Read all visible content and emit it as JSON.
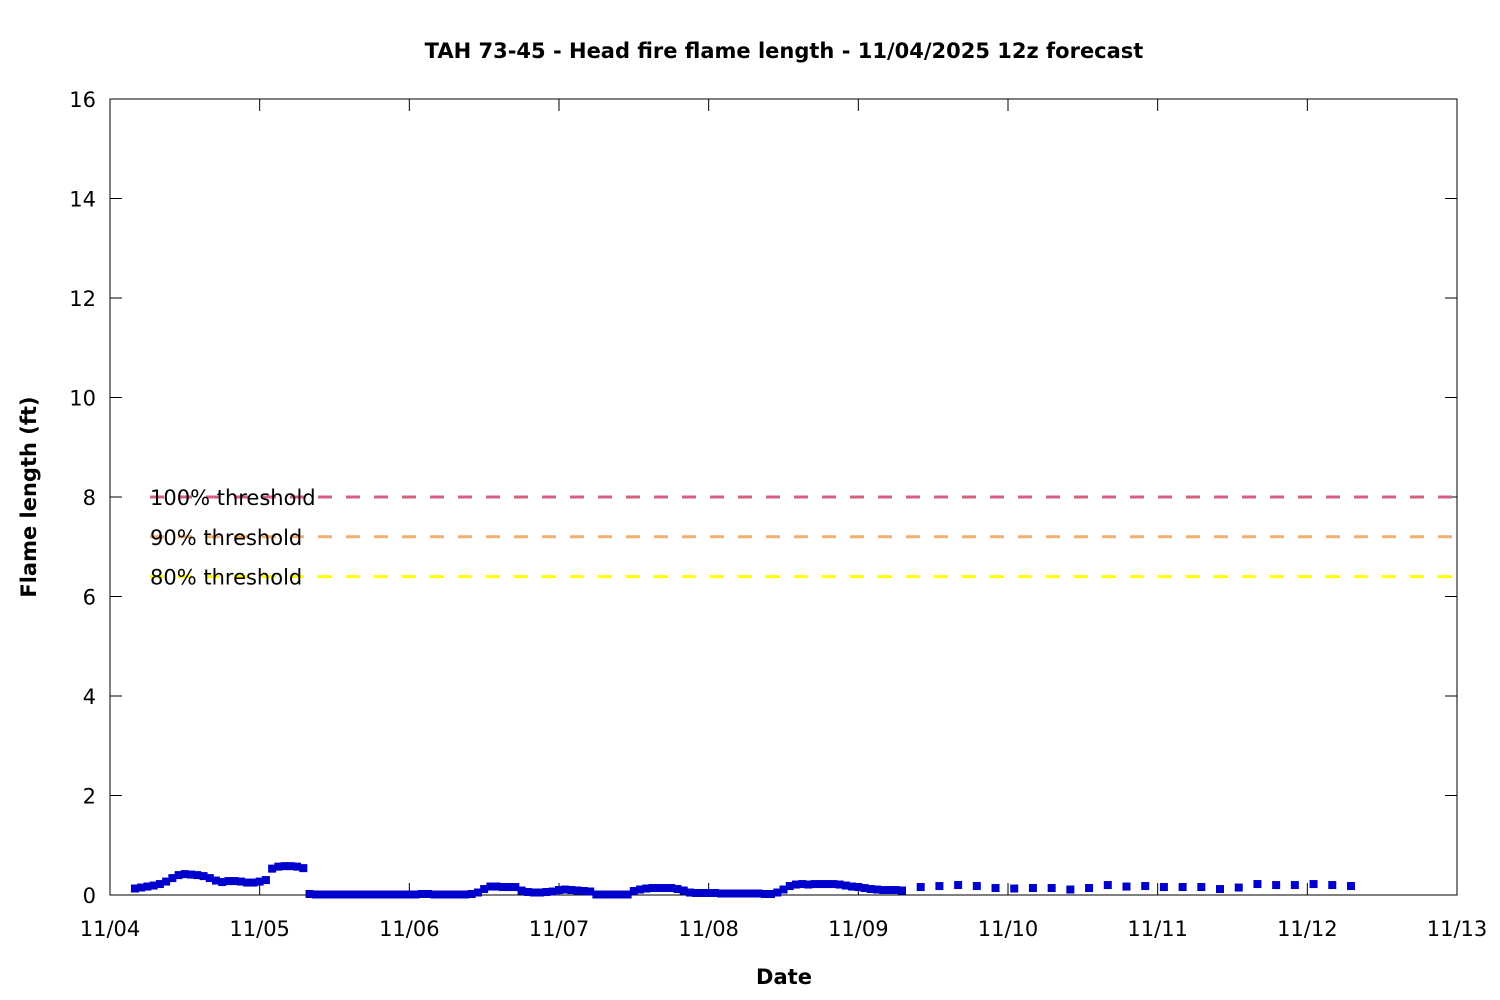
{
  "chart_data": {
    "type": "scatter",
    "title": "TAH 73-45 - Head fire flame length - 11/04/2025 12z forecast",
    "xlabel": "Date",
    "ylabel": "Flame length (ft)",
    "x_range": [
      "2025-11-04T00:00",
      "2025-11-13T00:00"
    ],
    "x_ticks": [
      "11/04",
      "11/05",
      "11/06",
      "11/07",
      "11/08",
      "11/09",
      "11/10",
      "11/11",
      "11/12",
      "11/13"
    ],
    "ylim": [
      0,
      16
    ],
    "y_ticks": [
      "0",
      "2",
      "4",
      "6",
      "8",
      "10",
      "12",
      "14",
      "16"
    ],
    "grid": false,
    "legend": "none",
    "series": [
      {
        "color": "#0000cc",
        "marker": "square",
        "points": [
          [
            "2025-11-04T04:00",
            0.13
          ],
          [
            "2025-11-04T05:00",
            0.15
          ],
          [
            "2025-11-04T06:00",
            0.17
          ],
          [
            "2025-11-04T07:00",
            0.19
          ],
          [
            "2025-11-04T08:00",
            0.22
          ],
          [
            "2025-11-04T09:00",
            0.27
          ],
          [
            "2025-11-04T10:00",
            0.34
          ],
          [
            "2025-11-04T11:00",
            0.4
          ],
          [
            "2025-11-04T12:00",
            0.42
          ],
          [
            "2025-11-04T13:00",
            0.41
          ],
          [
            "2025-11-04T14:00",
            0.4
          ],
          [
            "2025-11-04T15:00",
            0.38
          ],
          [
            "2025-11-04T16:00",
            0.34
          ],
          [
            "2025-11-04T17:00",
            0.29
          ],
          [
            "2025-11-04T18:00",
            0.26
          ],
          [
            "2025-11-04T19:00",
            0.28
          ],
          [
            "2025-11-04T20:00",
            0.28
          ],
          [
            "2025-11-04T21:00",
            0.27
          ],
          [
            "2025-11-04T22:00",
            0.25
          ],
          [
            "2025-11-04T23:00",
            0.25
          ],
          [
            "2025-11-05T00:00",
            0.27
          ],
          [
            "2025-11-05T01:00",
            0.3
          ],
          [
            "2025-11-05T02:00",
            0.53
          ],
          [
            "2025-11-05T03:00",
            0.57
          ],
          [
            "2025-11-05T04:00",
            0.58
          ],
          [
            "2025-11-05T05:00",
            0.58
          ],
          [
            "2025-11-05T06:00",
            0.57
          ],
          [
            "2025-11-05T07:00",
            0.54
          ],
          [
            "2025-11-05T08:00",
            0.02
          ],
          [
            "2025-11-05T09:00",
            0.01
          ],
          [
            "2025-11-05T10:00",
            0.01
          ],
          [
            "2025-11-05T11:00",
            0.01
          ],
          [
            "2025-11-05T12:00",
            0.01
          ],
          [
            "2025-11-05T13:00",
            0.01
          ],
          [
            "2025-11-05T14:00",
            0.01
          ],
          [
            "2025-11-05T15:00",
            0.01
          ],
          [
            "2025-11-05T16:00",
            0.01
          ],
          [
            "2025-11-05T17:00",
            0.01
          ],
          [
            "2025-11-05T18:00",
            0.01
          ],
          [
            "2025-11-05T19:00",
            0.01
          ],
          [
            "2025-11-05T20:00",
            0.01
          ],
          [
            "2025-11-05T21:00",
            0.01
          ],
          [
            "2025-11-05T22:00",
            0.01
          ],
          [
            "2025-11-05T23:00",
            0.01
          ],
          [
            "2025-11-06T00:00",
            0.01
          ],
          [
            "2025-11-06T01:00",
            0.01
          ],
          [
            "2025-11-06T02:00",
            0.02
          ],
          [
            "2025-11-06T03:00",
            0.02
          ],
          [
            "2025-11-06T04:00",
            0.01
          ],
          [
            "2025-11-06T05:00",
            0.01
          ],
          [
            "2025-11-06T06:00",
            0.01
          ],
          [
            "2025-11-06T07:00",
            0.01
          ],
          [
            "2025-11-06T08:00",
            0.01
          ],
          [
            "2025-11-06T09:00",
            0.01
          ],
          [
            "2025-11-06T10:00",
            0.02
          ],
          [
            "2025-11-06T11:00",
            0.05
          ],
          [
            "2025-11-06T12:00",
            0.12
          ],
          [
            "2025-11-06T13:00",
            0.17
          ],
          [
            "2025-11-06T14:00",
            0.17
          ],
          [
            "2025-11-06T15:00",
            0.16
          ],
          [
            "2025-11-06T16:00",
            0.16
          ],
          [
            "2025-11-06T17:00",
            0.16
          ],
          [
            "2025-11-06T18:00",
            0.09
          ],
          [
            "2025-11-06T19:00",
            0.06
          ],
          [
            "2025-11-06T20:00",
            0.05
          ],
          [
            "2025-11-06T21:00",
            0.05
          ],
          [
            "2025-11-06T22:00",
            0.06
          ],
          [
            "2025-11-06T23:00",
            0.07
          ],
          [
            "2025-11-07T00:00",
            0.1
          ],
          [
            "2025-11-07T01:00",
            0.11
          ],
          [
            "2025-11-07T02:00",
            0.1
          ],
          [
            "2025-11-07T03:00",
            0.09
          ],
          [
            "2025-11-07T04:00",
            0.08
          ],
          [
            "2025-11-07T05:00",
            0.07
          ],
          [
            "2025-11-07T06:00",
            0.01
          ],
          [
            "2025-11-07T07:00",
            0.01
          ],
          [
            "2025-11-07T08:00",
            0.01
          ],
          [
            "2025-11-07T09:00",
            0.01
          ],
          [
            "2025-11-07T10:00",
            0.01
          ],
          [
            "2025-11-07T11:00",
            0.01
          ],
          [
            "2025-11-07T12:00",
            0.08
          ],
          [
            "2025-11-07T13:00",
            0.11
          ],
          [
            "2025-11-07T14:00",
            0.13
          ],
          [
            "2025-11-07T15:00",
            0.14
          ],
          [
            "2025-11-07T16:00",
            0.14
          ],
          [
            "2025-11-07T17:00",
            0.14
          ],
          [
            "2025-11-07T18:00",
            0.14
          ],
          [
            "2025-11-07T19:00",
            0.12
          ],
          [
            "2025-11-07T20:00",
            0.09
          ],
          [
            "2025-11-07T21:00",
            0.05
          ],
          [
            "2025-11-07T22:00",
            0.04
          ],
          [
            "2025-11-07T23:00",
            0.04
          ],
          [
            "2025-11-08T00:00",
            0.04
          ],
          [
            "2025-11-08T01:00",
            0.04
          ],
          [
            "2025-11-08T02:00",
            0.03
          ],
          [
            "2025-11-08T03:00",
            0.03
          ],
          [
            "2025-11-08T04:00",
            0.03
          ],
          [
            "2025-11-08T05:00",
            0.03
          ],
          [
            "2025-11-08T06:00",
            0.03
          ],
          [
            "2025-11-08T07:00",
            0.03
          ],
          [
            "2025-11-08T08:00",
            0.03
          ],
          [
            "2025-11-08T09:00",
            0.02
          ],
          [
            "2025-11-08T10:00",
            0.02
          ],
          [
            "2025-11-08T11:00",
            0.05
          ],
          [
            "2025-11-08T12:00",
            0.11
          ],
          [
            "2025-11-08T13:00",
            0.18
          ],
          [
            "2025-11-08T14:00",
            0.21
          ],
          [
            "2025-11-08T15:00",
            0.22
          ],
          [
            "2025-11-08T16:00",
            0.21
          ],
          [
            "2025-11-08T17:00",
            0.22
          ],
          [
            "2025-11-08T18:00",
            0.22
          ],
          [
            "2025-11-08T19:00",
            0.22
          ],
          [
            "2025-11-08T20:00",
            0.22
          ],
          [
            "2025-11-08T21:00",
            0.21
          ],
          [
            "2025-11-08T22:00",
            0.19
          ],
          [
            "2025-11-08T23:00",
            0.17
          ],
          [
            "2025-11-09T00:00",
            0.16
          ],
          [
            "2025-11-09T01:00",
            0.14
          ],
          [
            "2025-11-09T02:00",
            0.12
          ],
          [
            "2025-11-09T03:00",
            0.11
          ],
          [
            "2025-11-09T04:00",
            0.1
          ],
          [
            "2025-11-09T05:00",
            0.1
          ],
          [
            "2025-11-09T06:00",
            0.1
          ],
          [
            "2025-11-09T07:00",
            0.09
          ],
          [
            "2025-11-09T10:00",
            0.16
          ],
          [
            "2025-11-09T13:00",
            0.18
          ],
          [
            "2025-11-09T16:00",
            0.2
          ],
          [
            "2025-11-09T19:00",
            0.18
          ],
          [
            "2025-11-09T22:00",
            0.14
          ],
          [
            "2025-11-10T01:00",
            0.13
          ],
          [
            "2025-11-10T04:00",
            0.14
          ],
          [
            "2025-11-10T07:00",
            0.14
          ],
          [
            "2025-11-10T10:00",
            0.11
          ],
          [
            "2025-11-10T13:00",
            0.14
          ],
          [
            "2025-11-10T16:00",
            0.2
          ],
          [
            "2025-11-10T19:00",
            0.17
          ],
          [
            "2025-11-10T22:00",
            0.18
          ],
          [
            "2025-11-11T01:00",
            0.16
          ],
          [
            "2025-11-11T04:00",
            0.16
          ],
          [
            "2025-11-11T07:00",
            0.16
          ],
          [
            "2025-11-11T10:00",
            0.12
          ],
          [
            "2025-11-11T13:00",
            0.15
          ],
          [
            "2025-11-11T16:00",
            0.22
          ],
          [
            "2025-11-11T19:00",
            0.2
          ],
          [
            "2025-11-11T22:00",
            0.2
          ],
          [
            "2025-11-12T01:00",
            0.22
          ],
          [
            "2025-11-12T04:00",
            0.2
          ],
          [
            "2025-11-12T07:00",
            0.18
          ]
        ]
      }
    ],
    "thresholds": [
      {
        "label": "100% threshold",
        "value": 8.0,
        "color": "#d95f80"
      },
      {
        "label": "90% threshold",
        "value": 7.2,
        "color": "#f0b070"
      },
      {
        "label": "80% threshold",
        "value": 6.4,
        "color": "#ffff00"
      }
    ]
  }
}
